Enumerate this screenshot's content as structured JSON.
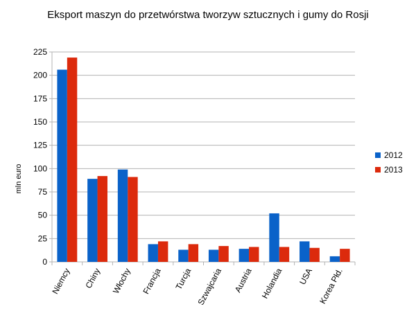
{
  "chart_data": {
    "type": "bar",
    "title": "Eksport maszyn do przetwórstwa tworzyw sztucznych i gumy do Rosji",
    "y_label": "mln euro",
    "categories": [
      "Niemcy",
      "Chiny",
      "Włochy",
      "Francja",
      "Turcja",
      "Szwajcaria",
      "Austria",
      "Holandia",
      "USA",
      "Korea Płd."
    ],
    "series": [
      {
        "name": "2012",
        "color": "#0a62c9",
        "values": [
          206,
          89,
          99,
          19,
          13,
          13,
          14,
          52,
          22,
          6
        ]
      },
      {
        "name": "2013",
        "color": "#dc2a0c",
        "values": [
          219,
          92,
          91,
          22,
          19,
          17,
          16,
          16,
          15,
          14
        ]
      }
    ],
    "ylim": [
      0,
      225
    ],
    "yticks": [
      0,
      25,
      50,
      75,
      100,
      125,
      150,
      175,
      200,
      225
    ],
    "grid": true,
    "legend": "right"
  }
}
